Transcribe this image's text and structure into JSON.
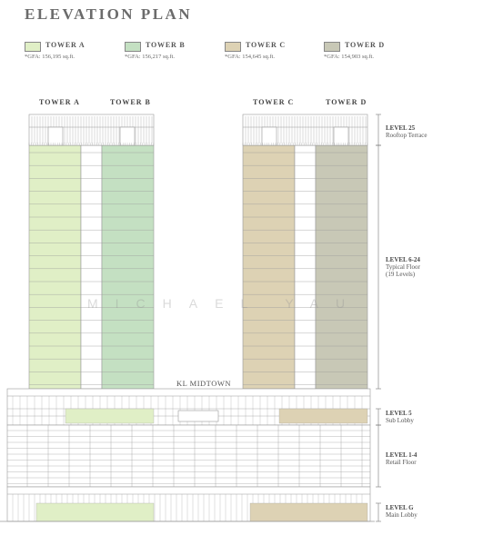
{
  "title": "ELEVATION PLAN",
  "legend": [
    {
      "label": "TOWER A",
      "gfa": "*GFA: 156,195 sq.ft.",
      "color": "#e0efc6"
    },
    {
      "label": "TOWER B",
      "gfa": "*GFA: 156,217 sq.ft.",
      "color": "#c4e0c2"
    },
    {
      "label": "TOWER C",
      "gfa": "*GFA: 154,645 sq.ft.",
      "color": "#ddd2b4"
    },
    {
      "label": "TOWER D",
      "gfa": "*GFA: 154,903 sq.ft.",
      "color": "#c8c8b6"
    }
  ],
  "tower_labels": [
    "TOWER A",
    "TOWER B",
    "TOWER C",
    "TOWER D"
  ],
  "levels": [
    {
      "name": "LEVEL 25",
      "desc": [
        "Rooftop Terrace"
      ]
    },
    {
      "name": "LEVEL 6-24",
      "desc": [
        "Typical Floor",
        "(19 Levels)"
      ]
    },
    {
      "name": "LEVEL 5",
      "desc": [
        "Sub Lobby"
      ]
    },
    {
      "name": "LEVEL 1-4",
      "desc": [
        "Retail Floor"
      ]
    },
    {
      "name": "LEVEL G",
      "desc": [
        "Main Lobby"
      ]
    }
  ],
  "mall_name": "KL MIDTOWN",
  "watermark": "MICHAEL YAU",
  "colors": {
    "line": "#9a9a9a",
    "tower_a": "#e0efc6",
    "tower_b": "#c4e0c2",
    "tower_c": "#ddd2b4",
    "tower_d": "#c8c8b6"
  }
}
